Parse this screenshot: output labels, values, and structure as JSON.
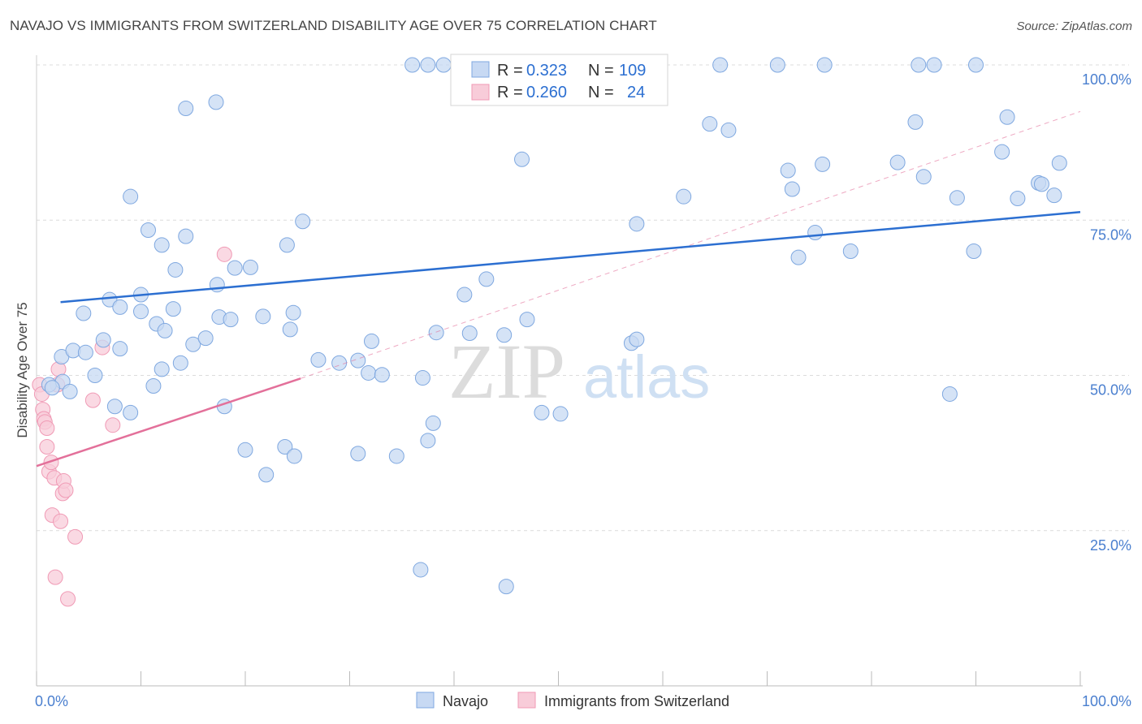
{
  "title": "NAVAJO VS IMMIGRANTS FROM SWITZERLAND DISABILITY AGE OVER 75 CORRELATION CHART",
  "source": "Source: ZipAtlas.com",
  "watermark": {
    "zip": "ZIP",
    "atlas": "atlas"
  },
  "chart_data": {
    "type": "scatter",
    "xlabel": "",
    "ylabel": "Disability Age Over 75",
    "xlim": [
      0,
      100
    ],
    "ylim": [
      0,
      100
    ],
    "x_tick_labels": [
      "0.0%",
      "100.0%"
    ],
    "y_ticks": [
      25,
      50,
      75,
      100
    ],
    "y_tick_labels": [
      "25.0%",
      "50.0%",
      "75.0%",
      "100.0%"
    ],
    "grid": "horizontal dashed",
    "legend_position": "top-center",
    "stats": [
      {
        "series": "Navajo",
        "r_label": "R =",
        "r": "0.323",
        "n_label": "N =",
        "n": "109"
      },
      {
        "series": "Immigrants from Switzerland",
        "r_label": "R =",
        "r": "0.260",
        "n_label": "N =",
        "n": "24"
      }
    ],
    "series": [
      {
        "name": "Navajo",
        "color": "#7fa8e0",
        "fill": "#c7d9f3",
        "line_color": "#2c6fd1",
        "trend": [
          [
            2.3,
            61.8
          ],
          [
            100,
            76.3
          ]
        ],
        "points": [
          [
            1.2,
            48.5
          ],
          [
            2.5,
            49.0
          ],
          [
            1.5,
            48.0
          ],
          [
            3.2,
            47.4
          ],
          [
            5.6,
            50.0
          ],
          [
            2.4,
            53.0
          ],
          [
            3.5,
            54.0
          ],
          [
            4.7,
            53.7
          ],
          [
            6.4,
            55.7
          ],
          [
            8.0,
            54.3
          ],
          [
            4.5,
            60.0
          ],
          [
            7.0,
            62.2
          ],
          [
            8.0,
            61.0
          ],
          [
            10.0,
            60.3
          ],
          [
            11.5,
            58.3
          ],
          [
            12.3,
            57.2
          ],
          [
            13.1,
            60.7
          ],
          [
            17.5,
            59.4
          ],
          [
            18.6,
            59.0
          ],
          [
            21.7,
            59.5
          ],
          [
            9.0,
            78.8
          ],
          [
            10.7,
            73.4
          ],
          [
            12.0,
            71.0
          ],
          [
            13.3,
            67.0
          ],
          [
            14.3,
            72.4
          ],
          [
            17.3,
            64.6
          ],
          [
            19.0,
            67.3
          ],
          [
            20.5,
            67.4
          ],
          [
            24.0,
            71.0
          ],
          [
            24.3,
            57.4
          ],
          [
            24.6,
            60.1
          ],
          [
            27.0,
            52.5
          ],
          [
            29.0,
            52.0
          ],
          [
            30.8,
            52.4
          ],
          [
            32.1,
            55.5
          ],
          [
            31.8,
            50.4
          ],
          [
            33.1,
            50.1
          ],
          [
            37.0,
            49.6
          ],
          [
            38.3,
            56.9
          ],
          [
            41.5,
            56.8
          ],
          [
            7.5,
            45.0
          ],
          [
            9.0,
            44.0
          ],
          [
            10.0,
            63.0
          ],
          [
            11.2,
            48.3
          ],
          [
            12.0,
            51.0
          ],
          [
            13.8,
            52.0
          ],
          [
            15.0,
            55.0
          ],
          [
            16.2,
            56.0
          ],
          [
            18.0,
            45.0
          ],
          [
            20.0,
            38.0
          ],
          [
            22.0,
            34.0
          ],
          [
            23.8,
            38.5
          ],
          [
            24.7,
            37.0
          ],
          [
            30.8,
            37.4
          ],
          [
            34.5,
            37.0
          ],
          [
            37.5,
            39.5
          ],
          [
            38.0,
            42.3
          ],
          [
            36.8,
            18.7
          ],
          [
            48.4,
            44.0
          ],
          [
            50.2,
            43.8
          ],
          [
            45.0,
            16.0
          ],
          [
            57.0,
            55.2
          ],
          [
            57.5,
            55.8
          ],
          [
            41.0,
            63.0
          ],
          [
            43.1,
            65.5
          ],
          [
            44.8,
            56.5
          ],
          [
            47.0,
            59.0
          ],
          [
            14.3,
            93.0
          ],
          [
            17.2,
            94.0
          ],
          [
            25.5,
            74.8
          ],
          [
            36.0,
            100.0
          ],
          [
            37.5,
            100.0
          ],
          [
            39.0,
            100.0
          ],
          [
            40.5,
            100.0
          ],
          [
            44.0,
            100.0
          ],
          [
            45.0,
            100.0
          ],
          [
            50.5,
            100.0
          ],
          [
            56.0,
            100.0
          ],
          [
            65.5,
            100.0
          ],
          [
            71.0,
            100.0
          ],
          [
            75.5,
            100.0
          ],
          [
            84.5,
            100.0
          ],
          [
            86.0,
            100.0
          ],
          [
            90.0,
            100.0
          ],
          [
            57.5,
            74.4
          ],
          [
            46.5,
            84.8
          ],
          [
            62.0,
            78.8
          ],
          [
            64.5,
            90.5
          ],
          [
            66.3,
            89.5
          ],
          [
            72.4,
            80.0
          ],
          [
            74.6,
            73.0
          ],
          [
            72.0,
            83.0
          ],
          [
            75.3,
            84.0
          ],
          [
            84.2,
            90.8
          ],
          [
            88.2,
            78.6
          ],
          [
            89.8,
            70.0
          ],
          [
            92.5,
            86.0
          ],
          [
            93.0,
            91.6
          ],
          [
            94.0,
            78.5
          ],
          [
            96.0,
            81.0
          ],
          [
            98.0,
            84.2
          ],
          [
            96.3,
            80.8
          ],
          [
            97.5,
            79.0
          ],
          [
            82.5,
            84.3
          ],
          [
            85.0,
            82.0
          ],
          [
            73.0,
            69.0
          ],
          [
            78.0,
            70.0
          ],
          [
            87.5,
            47.0
          ]
        ]
      },
      {
        "name": "Immigrants from Switzerland",
        "color": "#f09ab5",
        "fill": "#f8ccd9",
        "line_color": "#e3709a",
        "trend": [
          [
            0,
            35.4
          ],
          [
            25.3,
            49.5
          ]
        ],
        "trend_extension": [
          [
            25.3,
            49.5
          ],
          [
            100,
            92.5
          ]
        ],
        "points": [
          [
            0.3,
            48.5
          ],
          [
            0.5,
            47.0
          ],
          [
            0.6,
            44.5
          ],
          [
            0.7,
            43.0
          ],
          [
            0.8,
            42.5
          ],
          [
            1.0,
            41.5
          ],
          [
            1.0,
            38.5
          ],
          [
            1.2,
            34.5
          ],
          [
            1.4,
            36.0
          ],
          [
            1.7,
            33.5
          ],
          [
            1.5,
            27.5
          ],
          [
            2.0,
            48.5
          ],
          [
            2.1,
            51.0
          ],
          [
            2.3,
            26.5
          ],
          [
            2.5,
            31.0
          ],
          [
            2.6,
            33.0
          ],
          [
            2.8,
            31.5
          ],
          [
            3.0,
            14.0
          ],
          [
            3.7,
            24.0
          ],
          [
            1.8,
            17.5
          ],
          [
            5.4,
            46.0
          ],
          [
            6.3,
            54.5
          ],
          [
            7.3,
            42.0
          ],
          [
            18.0,
            69.5
          ]
        ]
      }
    ]
  }
}
